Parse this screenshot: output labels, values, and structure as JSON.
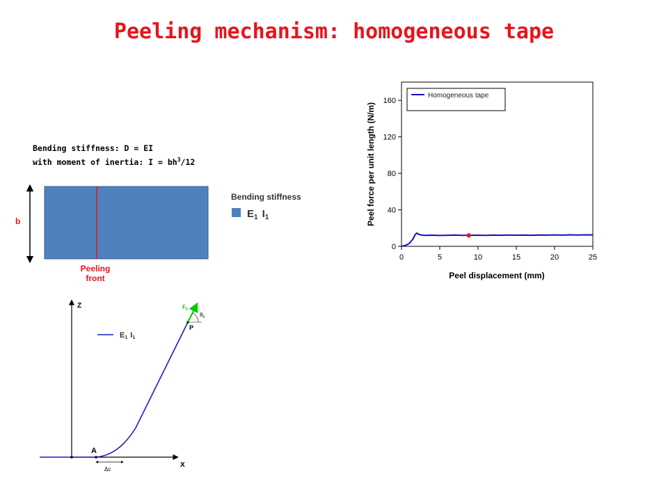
{
  "title": "Peeling mechanism: homogeneous tape",
  "formulas": {
    "line1": "Bending stiffness: D = EI",
    "line2_prefix": "with moment of inertia: I = bh",
    "line2_sup": "3",
    "line2_suffix": "/12"
  },
  "tape_diagram": {
    "dimension_label": "b",
    "front_label_1": "Peeling",
    "front_label_2": "front",
    "legend_title": "Bending stiffness",
    "legend_E": "E",
    "legend_E_sub": "1",
    "legend_I": "I",
    "legend_I_sub": "1",
    "colors": {
      "tape": "#4f81bd",
      "front": "#e8141c",
      "text_red": "#e8141c"
    }
  },
  "peel_diagram": {
    "axis_z": "Z",
    "axis_x": "X",
    "point_a": "A",
    "point_p": "P",
    "force": "F",
    "force_sub": "0",
    "angle": "θ",
    "angle_sub": "0",
    "delta_c": "Δc",
    "legend_E": "E",
    "legend_E_sub": "1",
    "legend_I": "I",
    "legend_I_sub": "1",
    "colors": {
      "curve": "#0000cc",
      "force": "#00cc00"
    }
  },
  "chart_data": {
    "type": "line",
    "xlabel": "Peel displacement (mm)",
    "ylabel": "Peel force per unit length (N/m)",
    "xlim": [
      0,
      25
    ],
    "ylim": [
      0,
      180
    ],
    "xticks": [
      0,
      5,
      10,
      15,
      20,
      25
    ],
    "yticks": [
      0,
      40,
      80,
      120,
      160
    ],
    "legend_position": "top-left",
    "series": [
      {
        "name": "Homogeneous tape",
        "color": "#1010c0",
        "x": [
          0,
          0.5,
          1.0,
          1.5,
          1.8,
          2.0,
          2.2,
          2.5,
          3,
          4,
          5,
          6,
          7,
          8,
          9,
          10,
          11,
          12,
          13,
          14,
          15,
          16,
          17,
          18,
          19,
          20,
          21,
          22,
          23,
          24,
          25
        ],
        "y": [
          0,
          1,
          3,
          8,
          13,
          14.5,
          13.5,
          12.5,
          12,
          12.2,
          11.9,
          12.1,
          12.3,
          12,
          12.1,
          12.2,
          12,
          12.3,
          12.1,
          12.4,
          12.2,
          12.3,
          12.1,
          12.4,
          12.3,
          12.5,
          12.3,
          12.6,
          12.4,
          12.6,
          12.5
        ]
      }
    ],
    "marker": {
      "x": 8.8,
      "y": 12,
      "color": "#e8141c"
    }
  }
}
